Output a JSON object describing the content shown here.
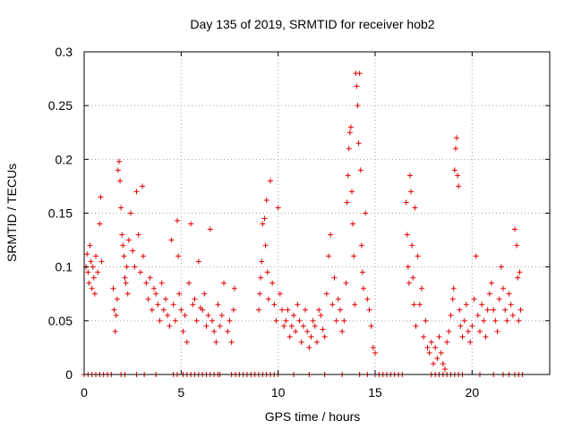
{
  "chart_data": {
    "type": "scatter",
    "title": "Day 135 of 2019, SRMTID for receiver hob2",
    "xlabel": "GPS time / hours",
    "ylabel": "SRMTID / TECUs",
    "xlim": [
      0,
      24
    ],
    "ylim": [
      0,
      0.3
    ],
    "x_ticks": [
      "0",
      "5",
      "10",
      "15",
      "20"
    ],
    "x_tick_values": [
      0,
      5,
      10,
      15,
      20
    ],
    "y_ticks": [
      "0",
      "0.05",
      "0.1",
      "0.15",
      "0.2",
      "0.25",
      "0.3"
    ],
    "y_tick_values": [
      0,
      0.05,
      0.1,
      0.15,
      0.2,
      0.25,
      0.3
    ],
    "grid": true,
    "marker": "plus",
    "color": "#e00000",
    "series": [
      {
        "name": "SRMTID",
        "points": [
          [
            0.1,
            0.1
          ],
          [
            0.15,
            0.112
          ],
          [
            0.2,
            0.095
          ],
          [
            0.25,
            0.085
          ],
          [
            0.3,
            0.12
          ],
          [
            0.35,
            0.105
          ],
          [
            0.4,
            0.08
          ],
          [
            0.45,
            0.1
          ],
          [
            0.5,
            0.09
          ],
          [
            0.55,
            0.075
          ],
          [
            0.6,
            0.11
          ],
          [
            0.7,
            0.095
          ],
          [
            0.8,
            0.14
          ],
          [
            0.85,
            0.165
          ],
          [
            0.9,
            0.105
          ],
          [
            1.5,
            0.08
          ],
          [
            1.55,
            0.06
          ],
          [
            1.6,
            0.04
          ],
          [
            1.65,
            0.055
          ],
          [
            1.7,
            0.07
          ],
          [
            1.75,
            0.19
          ],
          [
            1.8,
            0.198
          ],
          [
            1.85,
            0.18
          ],
          [
            1.9,
            0.155
          ],
          [
            1.95,
            0.13
          ],
          [
            2.0,
            0.12
          ],
          [
            2.05,
            0.11
          ],
          [
            2.1,
            0.09
          ],
          [
            2.15,
            0.085
          ],
          [
            2.2,
            0.1
          ],
          [
            2.25,
            0.075
          ],
          [
            2.3,
            0.125
          ],
          [
            2.4,
            0.15
          ],
          [
            2.5,
            0.115
          ],
          [
            2.6,
            0.1
          ],
          [
            2.7,
            0.17
          ],
          [
            2.8,
            0.13
          ],
          [
            2.9,
            0.095
          ],
          [
            3.0,
            0.175
          ],
          [
            3.05,
            0.11
          ],
          [
            3.2,
            0.085
          ],
          [
            3.3,
            0.07
          ],
          [
            3.4,
            0.09
          ],
          [
            3.5,
            0.06
          ],
          [
            3.6,
            0.08
          ],
          [
            3.7,
            0.075
          ],
          [
            3.8,
            0.065
          ],
          [
            3.9,
            0.05
          ],
          [
            4.0,
            0.085
          ],
          [
            4.1,
            0.06
          ],
          [
            4.2,
            0.07
          ],
          [
            4.3,
            0.055
          ],
          [
            4.4,
            0.045
          ],
          [
            4.5,
            0.125
          ],
          [
            4.6,
            0.065
          ],
          [
            4.7,
            0.05
          ],
          [
            4.8,
            0.143
          ],
          [
            4.85,
            0.11
          ],
          [
            4.9,
            0.075
          ],
          [
            5.0,
            0.06
          ],
          [
            5.1,
            0.04
          ],
          [
            5.2,
            0.055
          ],
          [
            5.3,
            0.03
          ],
          [
            5.4,
            0.085
          ],
          [
            5.5,
            0.14
          ],
          [
            5.6,
            0.065
          ],
          [
            5.7,
            0.07
          ],
          [
            5.8,
            0.05
          ],
          [
            5.9,
            0.105
          ],
          [
            6.0,
            0.062
          ],
          [
            6.1,
            0.06
          ],
          [
            6.2,
            0.075
          ],
          [
            6.3,
            0.045
          ],
          [
            6.4,
            0.055
          ],
          [
            6.5,
            0.135
          ],
          [
            6.6,
            0.05
          ],
          [
            6.7,
            0.04
          ],
          [
            6.8,
            0.03
          ],
          [
            6.9,
            0.065
          ],
          [
            7.0,
            0.045
          ],
          [
            7.1,
            0.055
          ],
          [
            7.2,
            0.085
          ],
          [
            7.4,
            0.04
          ],
          [
            7.5,
            0.05
          ],
          [
            7.6,
            0.03
          ],
          [
            7.7,
            0.06
          ],
          [
            7.75,
            0.08
          ],
          [
            9.0,
            0.06
          ],
          [
            9.05,
            0.075
          ],
          [
            9.1,
            0.09
          ],
          [
            9.15,
            0.105
          ],
          [
            9.2,
            0.14
          ],
          [
            9.3,
            0.145
          ],
          [
            9.35,
            0.12
          ],
          [
            9.4,
            0.162
          ],
          [
            9.45,
            0.095
          ],
          [
            9.5,
            0.07
          ],
          [
            9.6,
            0.18
          ],
          [
            9.7,
            0.085
          ],
          [
            9.8,
            0.065
          ],
          [
            9.9,
            0.05
          ],
          [
            10.0,
            0.155
          ],
          [
            10.1,
            0.075
          ],
          [
            10.2,
            0.06
          ],
          [
            10.3,
            0.045
          ],
          [
            10.4,
            0.05
          ],
          [
            10.5,
            0.06
          ],
          [
            10.6,
            0.035
          ],
          [
            10.7,
            0.045
          ],
          [
            10.8,
            0.055
          ],
          [
            10.9,
            0.04
          ],
          [
            11.0,
            0.065
          ],
          [
            11.1,
            0.05
          ],
          [
            11.2,
            0.03
          ],
          [
            11.3,
            0.045
          ],
          [
            11.4,
            0.06
          ],
          [
            11.5,
            0.04
          ],
          [
            11.6,
            0.025
          ],
          [
            11.7,
            0.035
          ],
          [
            11.8,
            0.05
          ],
          [
            11.9,
            0.045
          ],
          [
            12.0,
            0.03
          ],
          [
            12.1,
            0.06
          ],
          [
            12.2,
            0.055
          ],
          [
            12.3,
            0.042
          ],
          [
            12.4,
            0.035
          ],
          [
            12.5,
            0.075
          ],
          [
            12.6,
            0.11
          ],
          [
            12.7,
            0.13
          ],
          [
            12.8,
            0.065
          ],
          [
            12.9,
            0.09
          ],
          [
            13.0,
            0.05
          ],
          [
            13.1,
            0.07
          ],
          [
            13.2,
            0.06
          ],
          [
            13.3,
            0.04
          ],
          [
            13.4,
            0.05
          ],
          [
            13.5,
            0.085
          ],
          [
            13.55,
            0.16
          ],
          [
            13.6,
            0.185
          ],
          [
            13.65,
            0.21
          ],
          [
            13.7,
            0.225
          ],
          [
            13.75,
            0.23
          ],
          [
            13.8,
            0.17
          ],
          [
            13.85,
            0.14
          ],
          [
            13.9,
            0.11
          ],
          [
            13.95,
            0.065
          ],
          [
            14.0,
            0.28
          ],
          [
            14.05,
            0.268
          ],
          [
            14.1,
            0.25
          ],
          [
            14.15,
            0.215
          ],
          [
            14.2,
            0.28
          ],
          [
            14.25,
            0.19
          ],
          [
            14.3,
            0.12
          ],
          [
            14.35,
            0.095
          ],
          [
            14.4,
            0.08
          ],
          [
            14.5,
            0.15
          ],
          [
            14.6,
            0.07
          ],
          [
            14.7,
            0.06
          ],
          [
            14.8,
            0.045
          ],
          [
            14.9,
            0.025
          ],
          [
            15.0,
            0.02
          ],
          [
            16.6,
            0.16
          ],
          [
            16.65,
            0.13
          ],
          [
            16.7,
            0.1
          ],
          [
            16.75,
            0.085
          ],
          [
            16.8,
            0.185
          ],
          [
            16.85,
            0.17
          ],
          [
            16.9,
            0.12
          ],
          [
            16.95,
            0.09
          ],
          [
            17.0,
            0.065
          ],
          [
            17.05,
            0.155
          ],
          [
            17.1,
            0.045
          ],
          [
            17.2,
            0.11
          ],
          [
            17.3,
            0.065
          ],
          [
            17.4,
            0.08
          ],
          [
            17.5,
            0.035
          ],
          [
            17.6,
            0.05
          ],
          [
            17.7,
            0.025
          ],
          [
            17.8,
            0.02
          ],
          [
            17.9,
            0.03
          ],
          [
            18.0,
            0.01
          ],
          [
            18.1,
            0.025
          ],
          [
            18.2,
            0.015
          ],
          [
            18.3,
            0.035
          ],
          [
            18.4,
            0.02
          ],
          [
            18.5,
            0.01
          ],
          [
            18.6,
            0.005
          ],
          [
            18.7,
            0.03
          ],
          [
            18.8,
            0.04
          ],
          [
            18.9,
            0.055
          ],
          [
            19.0,
            0.07
          ],
          [
            19.05,
            0.08
          ],
          [
            19.1,
            0.19
          ],
          [
            19.15,
            0.21
          ],
          [
            19.2,
            0.22
          ],
          [
            19.25,
            0.185
          ],
          [
            19.3,
            0.175
          ],
          [
            19.35,
            0.06
          ],
          [
            19.4,
            0.045
          ],
          [
            19.5,
            0.035
          ],
          [
            19.6,
            0.05
          ],
          [
            19.7,
            0.065
          ],
          [
            19.8,
            0.04
          ],
          [
            19.9,
            0.03
          ],
          [
            20.0,
            0.045
          ],
          [
            20.1,
            0.07
          ],
          [
            20.2,
            0.11
          ],
          [
            20.3,
            0.055
          ],
          [
            20.4,
            0.04
          ],
          [
            20.5,
            0.065
          ],
          [
            20.6,
            0.05
          ],
          [
            20.7,
            0.035
          ],
          [
            20.8,
            0.06
          ],
          [
            20.9,
            0.075
          ],
          [
            21.0,
            0.085
          ],
          [
            21.1,
            0.06
          ],
          [
            21.2,
            0.05
          ],
          [
            21.3,
            0.04
          ],
          [
            21.4,
            0.07
          ],
          [
            21.5,
            0.1
          ],
          [
            21.6,
            0.08
          ],
          [
            21.7,
            0.06
          ],
          [
            21.8,
            0.05
          ],
          [
            21.9,
            0.075
          ],
          [
            22.0,
            0.065
          ],
          [
            22.1,
            0.055
          ],
          [
            22.2,
            0.135
          ],
          [
            22.3,
            0.12
          ],
          [
            22.35,
            0.09
          ],
          [
            22.4,
            0.05
          ],
          [
            22.45,
            0.095
          ],
          [
            22.5,
            0.06
          ],
          [
            0.0,
            0
          ],
          [
            0.2,
            0
          ],
          [
            0.4,
            0
          ],
          [
            0.6,
            0
          ],
          [
            0.8,
            0
          ],
          [
            1.0,
            0
          ],
          [
            1.2,
            0
          ],
          [
            1.4,
            0
          ],
          [
            1.9,
            0
          ],
          [
            2.1,
            0
          ],
          [
            2.7,
            0
          ],
          [
            3.1,
            0
          ],
          [
            3.7,
            0
          ],
          [
            4.6,
            0
          ],
          [
            4.8,
            0
          ],
          [
            5.1,
            0
          ],
          [
            5.3,
            0
          ],
          [
            5.5,
            0
          ],
          [
            5.7,
            0
          ],
          [
            5.9,
            0
          ],
          [
            6.1,
            0
          ],
          [
            6.3,
            0
          ],
          [
            6.5,
            0
          ],
          [
            6.7,
            0
          ],
          [
            6.9,
            0
          ],
          [
            7.0,
            0
          ],
          [
            7.6,
            0
          ],
          [
            7.8,
            0
          ],
          [
            8.0,
            0
          ],
          [
            8.2,
            0
          ],
          [
            8.4,
            0
          ],
          [
            8.6,
            0
          ],
          [
            8.8,
            0
          ],
          [
            9.0,
            0
          ],
          [
            9.2,
            0
          ],
          [
            9.4,
            0
          ],
          [
            9.6,
            0
          ],
          [
            9.8,
            0
          ],
          [
            10.0,
            0
          ],
          [
            10.8,
            0
          ],
          [
            11.6,
            0
          ],
          [
            12.4,
            0
          ],
          [
            13.3,
            0
          ],
          [
            14.2,
            0
          ],
          [
            14.6,
            0
          ],
          [
            15.0,
            0
          ],
          [
            15.2,
            0
          ],
          [
            15.4,
            0
          ],
          [
            15.6,
            0
          ],
          [
            15.8,
            0
          ],
          [
            16.0,
            0
          ],
          [
            16.2,
            0
          ],
          [
            16.4,
            0
          ],
          [
            17.9,
            0
          ],
          [
            18.1,
            0
          ],
          [
            18.3,
            0
          ],
          [
            18.5,
            0
          ],
          [
            18.7,
            0
          ],
          [
            18.9,
            0
          ],
          [
            19.1,
            0
          ],
          [
            19.3,
            0
          ],
          [
            19.5,
            0
          ],
          [
            20.4,
            0
          ],
          [
            21.1,
            0
          ],
          [
            21.6,
            0
          ],
          [
            21.9,
            0
          ],
          [
            22.2,
            0
          ],
          [
            22.4,
            0
          ],
          [
            22.6,
            0
          ]
        ]
      }
    ]
  }
}
